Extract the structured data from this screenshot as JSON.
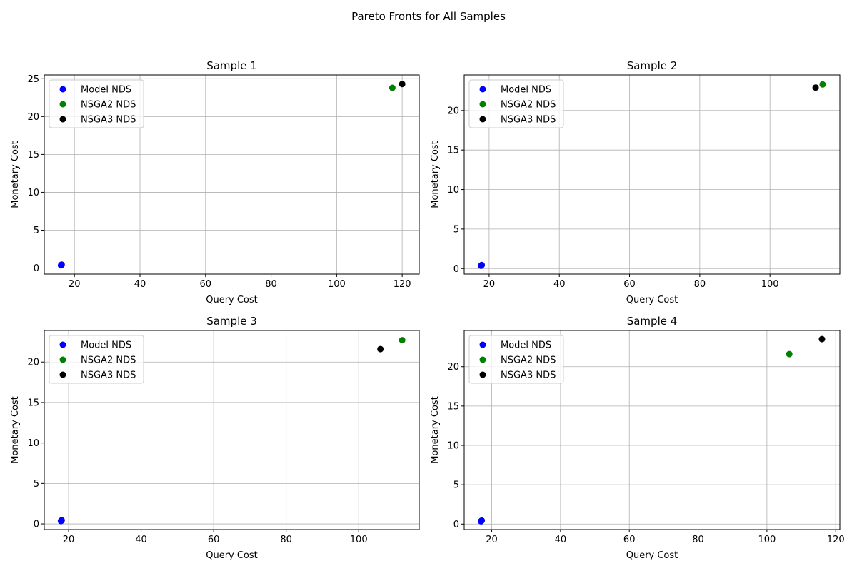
{
  "figure": {
    "title": "Pareto Fronts for All Samples"
  },
  "chart_data": [
    {
      "type": "scatter",
      "title": "Sample 1",
      "xlabel": "Query Cost",
      "ylabel": "Monetary Cost",
      "xlim": [
        10.8,
        125.2
      ],
      "ylim": [
        -0.8,
        25.5
      ],
      "xticks": [
        20,
        40,
        60,
        80,
        100,
        120
      ],
      "yticks": [
        0,
        5,
        10,
        15,
        20,
        25
      ],
      "grid": true,
      "legend": "upper left",
      "series": [
        {
          "name": "Model NDS",
          "color": "#0000ff",
          "points": [
            [
              16.0,
              0.4
            ],
            [
              15.9,
              0.35
            ],
            [
              16.1,
              0.45
            ]
          ]
        },
        {
          "name": "NSGA2 NDS",
          "color": "#008000",
          "points": [
            [
              117.0,
              23.8
            ]
          ]
        },
        {
          "name": "NSGA3 NDS",
          "color": "#000000",
          "points": [
            [
              120.0,
              24.3
            ]
          ]
        }
      ]
    },
    {
      "type": "scatter",
      "title": "Sample 2",
      "xlabel": "Query Cost",
      "ylabel": "Monetary Cost",
      "xlim": [
        12.9,
        119.9
      ],
      "ylim": [
        -0.7,
        24.5
      ],
      "xticks": [
        20,
        40,
        60,
        80,
        100
      ],
      "yticks": [
        0,
        5,
        10,
        15,
        20
      ],
      "grid": true,
      "legend": "upper left",
      "series": [
        {
          "name": "Model NDS",
          "color": "#0000ff",
          "points": [
            [
              17.8,
              0.4
            ],
            [
              17.7,
              0.35
            ],
            [
              17.9,
              0.45
            ]
          ]
        },
        {
          "name": "NSGA2 NDS",
          "color": "#008000",
          "points": [
            [
              115.0,
              23.3
            ]
          ]
        },
        {
          "name": "NSGA3 NDS",
          "color": "#000000",
          "points": [
            [
              113.0,
              22.9
            ]
          ]
        }
      ]
    },
    {
      "type": "scatter",
      "title": "Sample 3",
      "xlabel": "Query Cost",
      "ylabel": "Monetary Cost",
      "xlim": [
        13.3,
        116.7
      ],
      "ylim": [
        -0.7,
        23.9
      ],
      "xticks": [
        20,
        40,
        60,
        80,
        100
      ],
      "yticks": [
        0,
        5,
        10,
        15,
        20
      ],
      "grid": true,
      "legend": "upper left",
      "series": [
        {
          "name": "Model NDS",
          "color": "#0000ff",
          "points": [
            [
              18.0,
              0.4
            ],
            [
              17.9,
              0.35
            ],
            [
              18.1,
              0.45
            ]
          ]
        },
        {
          "name": "NSGA2 NDS",
          "color": "#008000",
          "points": [
            [
              112.0,
              22.7
            ]
          ]
        },
        {
          "name": "NSGA3 NDS",
          "color": "#000000",
          "points": [
            [
              106.0,
              21.6
            ]
          ]
        }
      ]
    },
    {
      "type": "scatter",
      "title": "Sample 4",
      "xlabel": "Query Cost",
      "ylabel": "Monetary Cost",
      "xlim": [
        12.0,
        121.2
      ],
      "ylim": [
        -0.7,
        24.6
      ],
      "xticks": [
        20,
        40,
        60,
        80,
        100,
        120
      ],
      "yticks": [
        0,
        5,
        10,
        15,
        20
      ],
      "grid": true,
      "legend": "upper left",
      "series": [
        {
          "name": "Model NDS",
          "color": "#0000ff",
          "points": [
            [
              17.0,
              0.4
            ],
            [
              16.9,
              0.35
            ],
            [
              17.1,
              0.45
            ]
          ]
        },
        {
          "name": "NSGA2 NDS",
          "color": "#008000",
          "points": [
            [
              106.5,
              21.6
            ]
          ]
        },
        {
          "name": "NSGA3 NDS",
          "color": "#000000",
          "points": [
            [
              116.0,
              23.5
            ]
          ]
        }
      ]
    }
  ]
}
